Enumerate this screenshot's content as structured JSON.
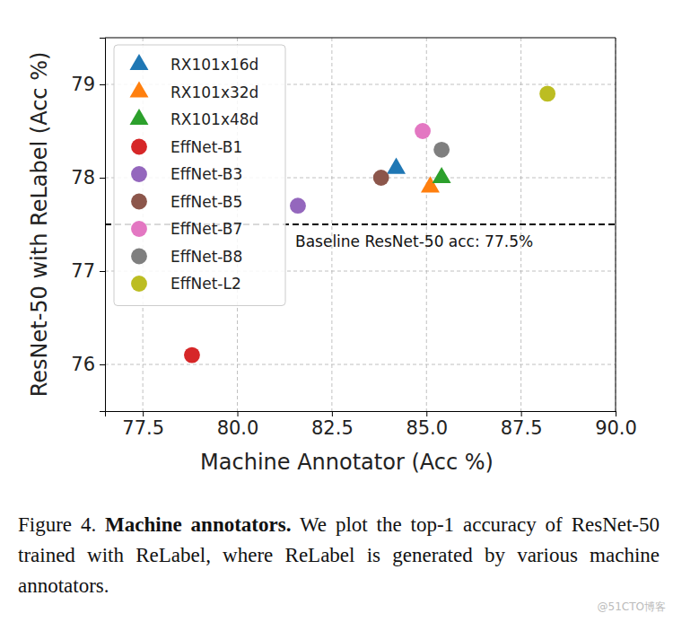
{
  "chart_data": {
    "type": "scatter",
    "x_label": "Machine Annotator (Acc %)",
    "y_label": "ResNet-50 with ReLabel (Acc %)",
    "series": [
      {
        "name": "RX101x16d",
        "color": "#1f77b4",
        "marker": "triangle",
        "x": [
          84.2
        ],
        "values": [
          78.1
        ]
      },
      {
        "name": "RX101x32d",
        "color": "#ff7f0e",
        "marker": "triangle",
        "x": [
          85.1
        ],
        "values": [
          77.9
        ]
      },
      {
        "name": "RX101x48d",
        "color": "#2ca02c",
        "marker": "triangle",
        "x": [
          85.4
        ],
        "values": [
          78.0
        ]
      },
      {
        "name": "EffNet-B1",
        "color": "#d62728",
        "marker": "circle",
        "x": [
          78.8
        ],
        "values": [
          76.1
        ]
      },
      {
        "name": "EffNet-B3",
        "color": "#9467bd",
        "marker": "circle",
        "x": [
          81.6
        ],
        "values": [
          77.7
        ]
      },
      {
        "name": "EffNet-B5",
        "color": "#8c564b",
        "marker": "circle",
        "x": [
          83.8
        ],
        "values": [
          78.0
        ]
      },
      {
        "name": "EffNet-B7",
        "color": "#e377c2",
        "marker": "circle",
        "x": [
          84.9
        ],
        "values": [
          78.5
        ]
      },
      {
        "name": "EffNet-B8",
        "color": "#7f7f7f",
        "marker": "circle",
        "x": [
          85.4
        ],
        "values": [
          78.3
        ]
      },
      {
        "name": "EffNet-L2",
        "color": "#bcbd22",
        "marker": "circle",
        "x": [
          88.2
        ],
        "values": [
          78.9
        ]
      }
    ],
    "baseline": {
      "value": 77.5,
      "label": "Baseline ResNet-50 acc: 77.5%"
    },
    "xlim": [
      76.5,
      90.0
    ],
    "xticks": [
      {
        "value": 77.5,
        "label": "77.5"
      },
      {
        "value": 80,
        "label": "80.0"
      },
      {
        "value": 82.5,
        "label": "82.5"
      },
      {
        "value": 85,
        "label": "85.0"
      },
      {
        "value": 87.5,
        "label": "87.5"
      },
      {
        "value": 90,
        "label": "90.0"
      }
    ],
    "ylim": [
      75.5,
      79.5
    ],
    "yticks": [
      76,
      77,
      78,
      79
    ],
    "grid": true,
    "legend": "upper left"
  },
  "caption": {
    "label": "Figure 4.",
    "title": "Machine annotators.",
    "text": "We plot the top-1 accuracy of ResNet-50 trained with ReLabel, where ReLabel is generated by various machine annotators."
  },
  "watermark": "@51CTO博客"
}
